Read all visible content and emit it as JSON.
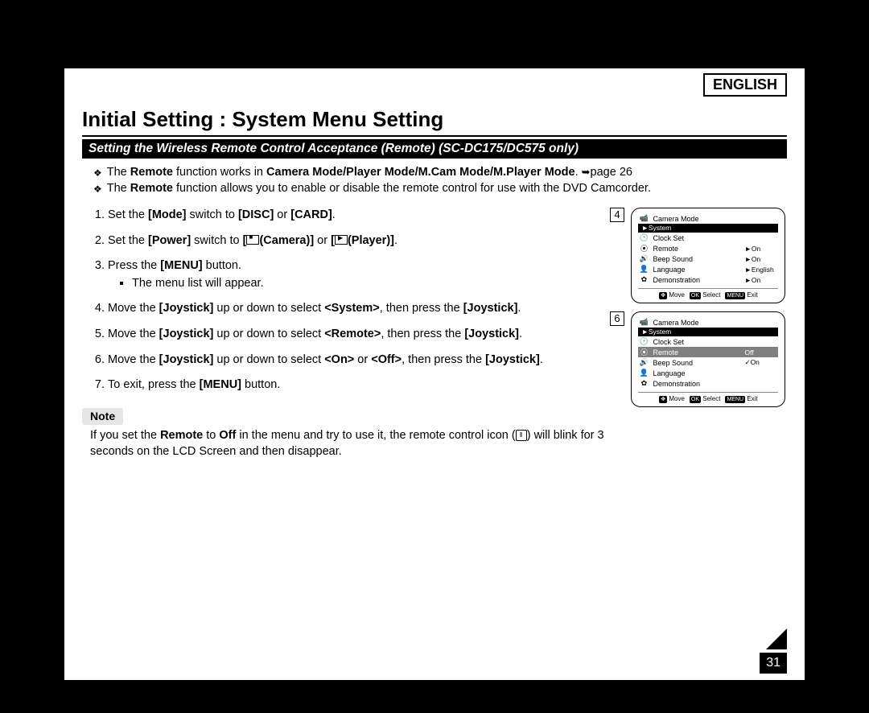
{
  "language_label": "ENGLISH",
  "title": "Initial Setting : System Menu Setting",
  "subtitle": "Setting the Wireless Remote Control Acceptance (Remote) (SC-DC175/DC575 only)",
  "intro": [
    {
      "pre": "The ",
      "b1": "Remote",
      "mid": " function works in ",
      "b2": "Camera Mode/Player Mode/M.Cam Mode/M.Player Mode",
      "post": ". ",
      "arrow": "➥",
      "page_ref": "page 26"
    },
    {
      "pre": "The ",
      "b1": "Remote",
      "post": " function allows you to enable or disable the remote control for use with the DVD Camcorder."
    }
  ],
  "steps": {
    "s1": {
      "a": "Set the ",
      "b1": "[Mode]",
      "b": " switch to ",
      "b2": "[DISC]",
      "c": " or ",
      "b3": "[CARD]",
      "d": "."
    },
    "s2": {
      "a": "Set the ",
      "b1": "[Power]",
      "b": " switch to ",
      "b2": "[",
      "cam": "(Camera)]",
      "c": " or ",
      "b3": "[",
      "play": "(Player)]",
      "d": "."
    },
    "s3": {
      "a": "Press the ",
      "b1": "[MENU]",
      "b": " button.",
      "sub": "The menu list will appear."
    },
    "s4": {
      "a": "Move the ",
      "b1": "[Joystick]",
      "b": " up or down to select ",
      "b2": "<System>",
      "c": ", then press the ",
      "b3": "[Joystick]",
      "d": "."
    },
    "s5": {
      "a": "Move the ",
      "b1": "[Joystick]",
      "b": " up or down to select ",
      "b2": "<Remote>",
      "c": ", then press the ",
      "b3": "[Joystick]",
      "d": "."
    },
    "s6": {
      "a": "Move the ",
      "b1": "[Joystick]",
      "b": " up or down to select ",
      "b2": "<On>",
      "c": " or ",
      "b3": "<Off>",
      "d": ", then press the ",
      "b4": "[Joystick]",
      "e": "."
    },
    "s7": {
      "a": "To exit, press the ",
      "b1": "[MENU]",
      "b": " button."
    }
  },
  "note_label": "Note",
  "note": {
    "a": "If you set the ",
    "b1": "Remote",
    "b": " to ",
    "b2": "Off",
    "c": " in the menu and try to use it, the remote control icon (",
    "ic": "⦀",
    "d": ") will blink for 3 seconds on the LCD Screen and then disappear."
  },
  "screen4": {
    "num": "4",
    "mode": "Camera Mode",
    "header": "►System",
    "rows": [
      {
        "icon": "🕒",
        "label": "Clock Set",
        "val": ""
      },
      {
        "icon": "⦿",
        "label": "Remote",
        "val": "►On"
      },
      {
        "icon": "🔊",
        "label": "Beep Sound",
        "val": "►On"
      },
      {
        "icon": "👤",
        "label": "Language",
        "val": "►English"
      },
      {
        "icon": "✿",
        "label": "Demonstration",
        "val": "►On"
      }
    ]
  },
  "screen6": {
    "num": "6",
    "mode": "Camera Mode",
    "header": "►System",
    "rows": [
      {
        "icon": "🕒",
        "label": "Clock Set",
        "val": "",
        "hl": false
      },
      {
        "icon": "⦿",
        "label": "Remote",
        "val": "Off",
        "hl": true
      },
      {
        "icon": "🔊",
        "label": "Beep Sound",
        "val": "✓On",
        "hl": false
      },
      {
        "icon": "👤",
        "label": "Language",
        "val": "",
        "hl": false
      },
      {
        "icon": "✿",
        "label": "Demonstration",
        "val": "",
        "hl": false
      }
    ]
  },
  "footer": {
    "move": "Move",
    "select": "Select",
    "exit": "Exit",
    "move_key": "✥",
    "ok_key": "OK",
    "menu_key": "MENU"
  },
  "page_number": "31"
}
